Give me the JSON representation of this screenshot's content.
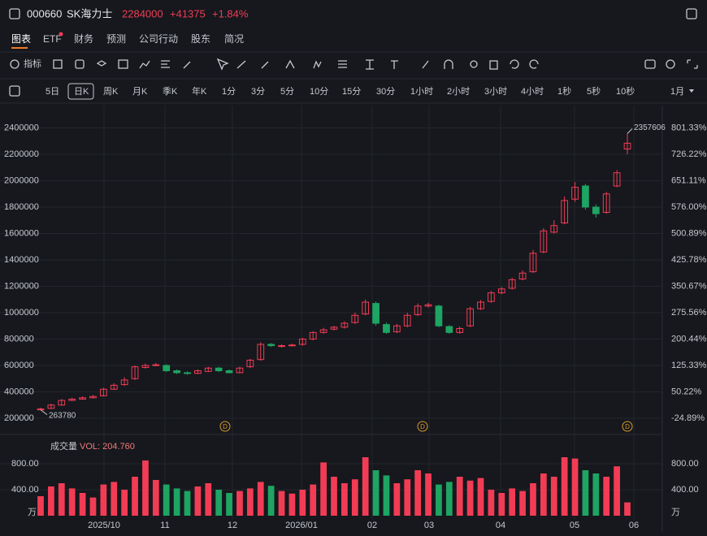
{
  "header": {
    "code": "000660",
    "name": "SK海力士",
    "price": "2284000",
    "change": "+41375",
    "change_pct": "+1.84%"
  },
  "tabs": [
    "图表",
    "ETF",
    "财务",
    "预测",
    "公司行动",
    "股东",
    "简况"
  ],
  "toolbar": {
    "indicator": "指标"
  },
  "timeframes": [
    "5日",
    "日K",
    "周K",
    "月K",
    "季K",
    "年K",
    "1分",
    "3分",
    "5分",
    "10分",
    "15分",
    "30分",
    "1小时",
    "2小时",
    "3小时",
    "4小时",
    "1秒",
    "5秒",
    "10秒"
  ],
  "range_select": "1月",
  "chart_data": {
    "type": "candlestick",
    "x_labels": [
      "2025/10",
      "11",
      "12",
      "2026/01",
      "02",
      "03",
      "04",
      "05",
      "06"
    ],
    "open": [
      265000,
      275000,
      300000,
      335000,
      345000,
      355000,
      370000,
      420000,
      455000,
      500000,
      585000,
      600000,
      600000,
      560000,
      545000,
      540000,
      555000,
      580000,
      560000,
      545000,
      590000,
      645000,
      760000,
      745000,
      750000,
      760000,
      800000,
      850000,
      875000,
      890000,
      925000,
      990000,
      1070000,
      910000,
      855000,
      900000,
      985000,
      1050000,
      1050000,
      895000,
      850000,
      900000,
      1030000,
      1085000,
      1150000,
      1185000,
      1255000,
      1310000,
      1460000,
      1610000,
      1680000,
      1860000,
      1960000,
      1800000,
      1760000,
      1960000,
      2240000
    ],
    "high": [
      280000,
      310000,
      345000,
      355000,
      365000,
      375000,
      430000,
      465000,
      510000,
      600000,
      615000,
      620000,
      610000,
      570000,
      555000,
      570000,
      590000,
      590000,
      570000,
      590000,
      650000,
      775000,
      770000,
      760000,
      765000,
      810000,
      860000,
      885000,
      900000,
      935000,
      1000000,
      1100000,
      1085000,
      925000,
      915000,
      1000000,
      1070000,
      1075000,
      1060000,
      905000,
      895000,
      1045000,
      1095000,
      1165000,
      1195000,
      1265000,
      1320000,
      1475000,
      1640000,
      1700000,
      1880000,
      1990000,
      1975000,
      1820000,
      1915000,
      2080000,
      2357606
    ],
    "low": [
      263780,
      270000,
      295000,
      330000,
      340000,
      350000,
      365000,
      415000,
      445000,
      490000,
      575000,
      595000,
      550000,
      535000,
      530000,
      535000,
      550000,
      550000,
      540000,
      540000,
      580000,
      635000,
      740000,
      735000,
      745000,
      750000,
      790000,
      840000,
      865000,
      880000,
      915000,
      980000,
      900000,
      840000,
      845000,
      890000,
      975000,
      1040000,
      890000,
      840000,
      840000,
      890000,
      1020000,
      1075000,
      1140000,
      1175000,
      1245000,
      1300000,
      1450000,
      1600000,
      1670000,
      1840000,
      1780000,
      1720000,
      1750000,
      1950000,
      2200000
    ],
    "close": [
      270000,
      300000,
      335000,
      345000,
      355000,
      365000,
      420000,
      450000,
      490000,
      590000,
      600000,
      605000,
      560000,
      545000,
      540000,
      560000,
      580000,
      560000,
      545000,
      580000,
      640000,
      760000,
      750000,
      750000,
      755000,
      800000,
      850000,
      870000,
      890000,
      920000,
      980000,
      1080000,
      920000,
      850000,
      900000,
      980000,
      1050000,
      1060000,
      900000,
      850000,
      880000,
      1030000,
      1080000,
      1150000,
      1180000,
      1250000,
      1300000,
      1450000,
      1620000,
      1660000,
      1850000,
      1950000,
      1800000,
      1750000,
      1900000,
      2060000,
      2284000
    ],
    "up_color": "#f23c55",
    "down_color": "#1ea463",
    "ylim": [
      107692,
      2507692
    ],
    "yticks": [
      2400000,
      2200000,
      2000000,
      1800000,
      1600000,
      1400000,
      1200000,
      1000000,
      800000,
      600000,
      400000,
      200000
    ],
    "y2lim": [
      -59.56,
      841.77
    ],
    "y2ticks": [
      {
        "value": 801.33,
        "label": "801.33%"
      },
      {
        "value": 726.22,
        "label": "726.22%"
      },
      {
        "value": 651.11,
        "label": "651.11%"
      },
      {
        "value": 576.0,
        "label": "576.00%"
      },
      {
        "value": 500.89,
        "label": "500.89%"
      },
      {
        "value": 425.78,
        "label": "425.78%"
      },
      {
        "value": 350.67,
        "label": "350.67%"
      },
      {
        "value": 275.56,
        "label": "275.56%"
      },
      {
        "value": 200.44,
        "label": "200.44%"
      },
      {
        "value": 125.33,
        "label": "125.33%"
      },
      {
        "value": 50.22,
        "label": "50.22%"
      },
      {
        "value": -24.89,
        "label": "-24.89%"
      }
    ],
    "event_labels": [
      "D",
      "D",
      "D"
    ],
    "grid": true,
    "volume_title": "成交量",
    "volume_label": "VOL: 204.760",
    "volume_unit": "万",
    "volume": [
      300,
      450,
      500,
      420,
      350,
      280,
      480,
      520,
      400,
      600,
      850,
      550,
      480,
      420,
      380,
      450,
      500,
      400,
      350,
      380,
      420,
      520,
      460,
      380,
      340,
      400,
      480,
      820,
      600,
      500,
      560,
      900,
      700,
      620,
      500,
      560,
      700,
      650,
      480,
      520,
      600,
      540,
      580,
      400,
      350,
      420,
      380,
      500,
      650,
      600,
      900,
      880,
      700,
      650,
      600,
      760,
      204.76
    ],
    "vlim": [
      0,
      1125
    ],
    "vticks": [
      {
        "value": 800,
        "label": "800.00"
      },
      {
        "value": 400,
        "label": "400.00"
      }
    ]
  }
}
